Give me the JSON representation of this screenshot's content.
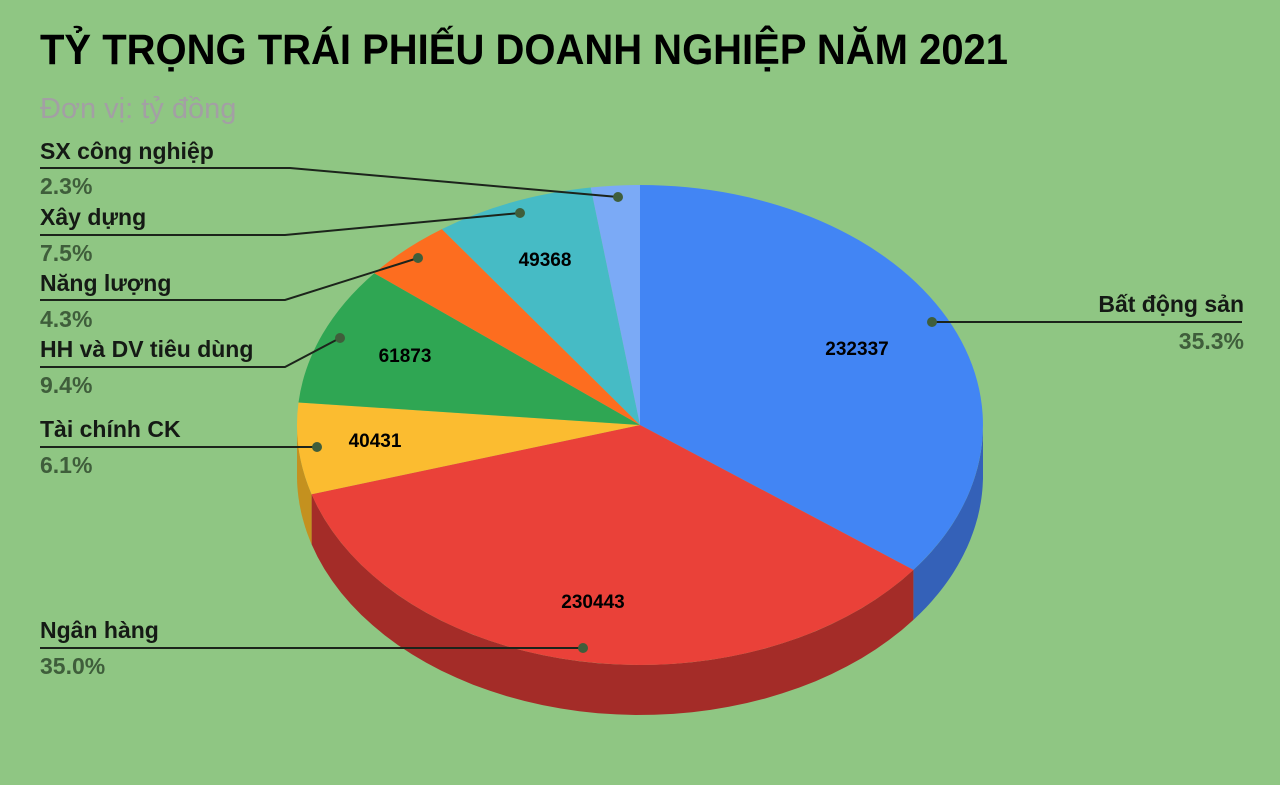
{
  "title": "TỶ TRỌNG TRÁI PHIẾU DOANH NGHIỆP NĂM 2021",
  "subtitle": "Đơn vị: tỷ đồng",
  "colors": {
    "background": "#8fc683",
    "leader_line": "#1c241b",
    "leader_dot": "#3f5e3b"
  },
  "chart_data": {
    "type": "pie",
    "style": "3d",
    "title": "TỶ TRỌNG TRÁI PHIẾU DOANH NGHIỆP NĂM 2021",
    "subtitle": "Đơn vị: tỷ đồng",
    "unit": "tỷ đồng",
    "start_angle": "12 o'clock, clockwise",
    "slices": [
      {
        "label": "Bất động sản",
        "value": 232337,
        "percent": "35.3%",
        "color": "#4285f4",
        "side": "#3461b8",
        "show_value": "232337"
      },
      {
        "label": "Ngân hàng",
        "value": 230443,
        "percent": "35.0%",
        "color": "#ea4139",
        "side": "#a42c28",
        "show_value": "230443"
      },
      {
        "label": "Tài chính CK",
        "value": 40431,
        "percent": "6.1%",
        "color": "#fbbc30",
        "side": "#c4911f",
        "show_value": "40431"
      },
      {
        "label": "HH và DV tiêu dùng",
        "value": 61873,
        "percent": "9.4%",
        "color": "#2fa653",
        "side": "#207a3c",
        "show_value": "61873"
      },
      {
        "label": "Năng lượng",
        "value": 28300,
        "percent": "4.3%",
        "color": "#fd6d1f",
        "side": "#b94f15",
        "show_value": ""
      },
      {
        "label": "Xây dựng",
        "value": 49368,
        "percent": "7.5%",
        "color": "#46bbc5",
        "side": "#2f8990",
        "show_value": "49368"
      },
      {
        "label": "SX công nghiệp",
        "value": 15100,
        "percent": "2.3%",
        "color": "#7baaf6",
        "side": "#5a80bd",
        "show_value": ""
      }
    ]
  },
  "labels": [
    {
      "name": "Bất động sản",
      "pct": "35.3%"
    },
    {
      "name": "Ngân hàng",
      "pct": "35.0%"
    },
    {
      "name": "Tài chính CK",
      "pct": "6.1%"
    },
    {
      "name": "HH và DV tiêu dùng",
      "pct": "9.4%"
    },
    {
      "name": "Năng lượng",
      "pct": "4.3%"
    },
    {
      "name": "Xây dựng",
      "pct": "7.5%"
    },
    {
      "name": "SX công nghiệp",
      "pct": "2.3%"
    }
  ]
}
